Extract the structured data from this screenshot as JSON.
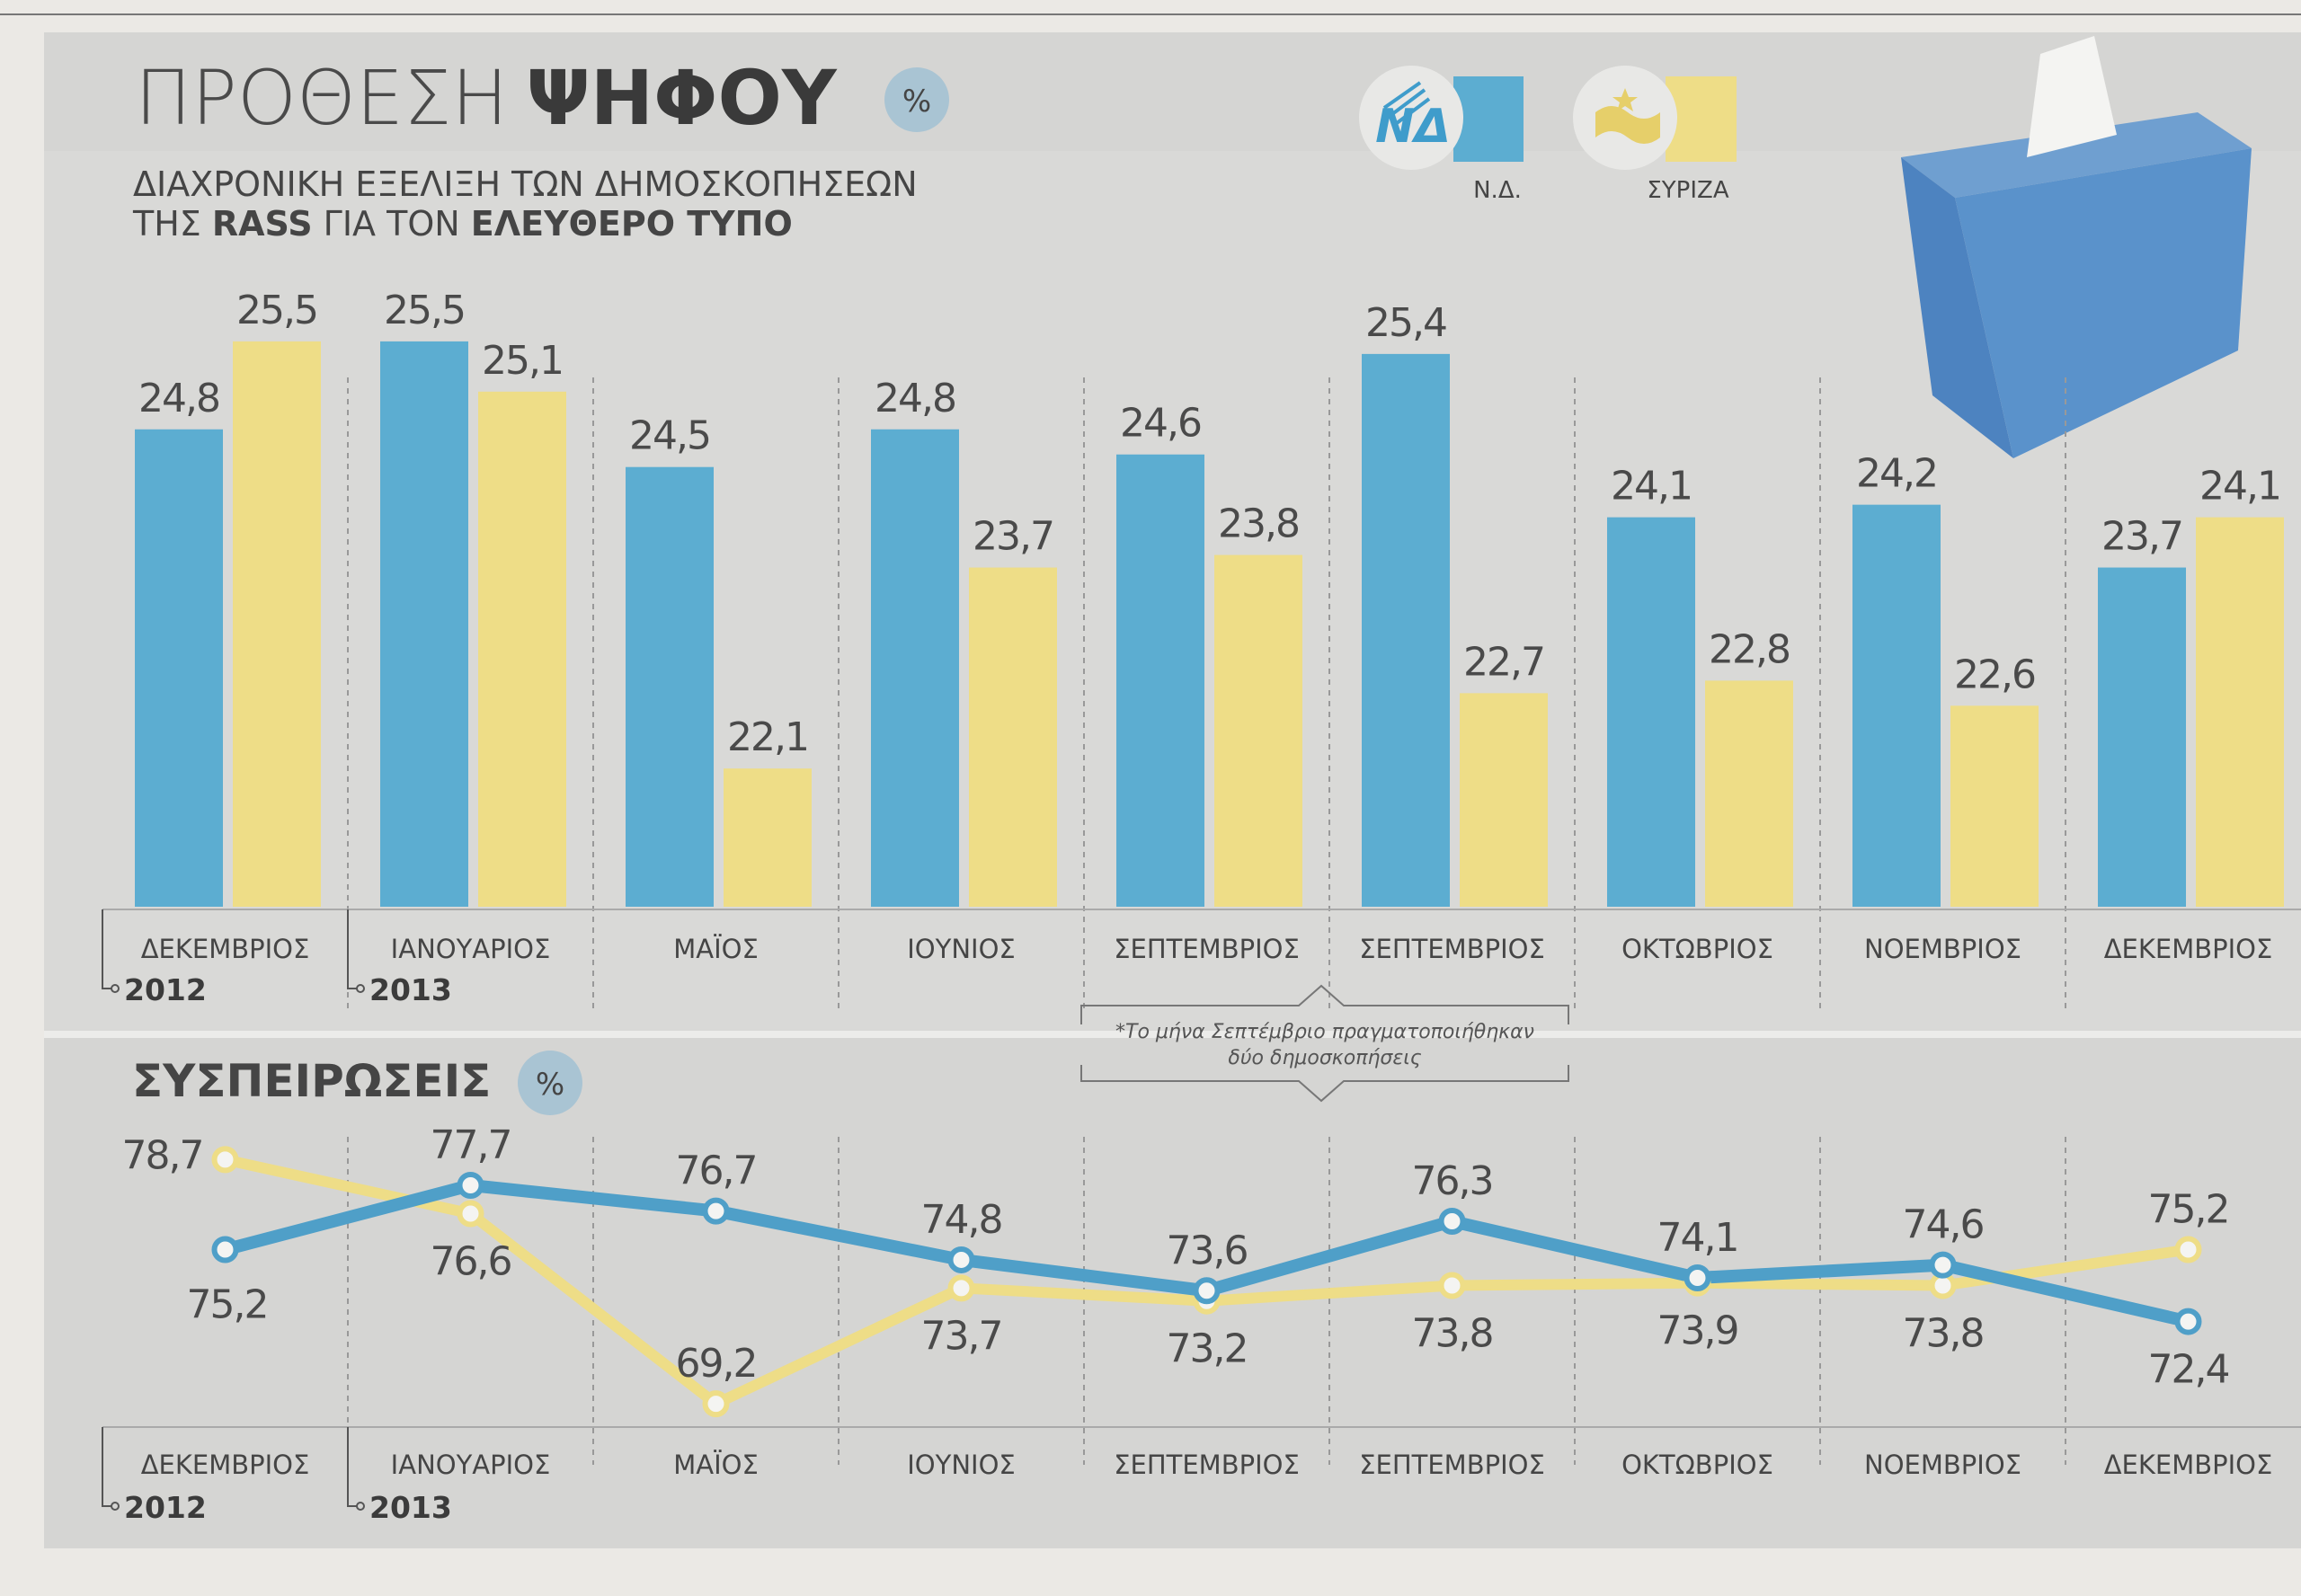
{
  "title": {
    "light": "ΠΡΟΘΕΣΗ",
    "bold": "ΨΗΦΟΥ",
    "unit": "%"
  },
  "subtitle": {
    "line1": "ΔΙΑΧΡΟΝΙΚΗ ΕΞΕΛΙΞΗ ΤΩΝ ΔΗΜΟΣΚΟΠΗΣΕΩΝ",
    "line2_a": "ΤΗΣ ",
    "line2_b": "RASS",
    "line2_c": " ΓΙΑ ΤΟΝ ",
    "line2_d": "ΕΛΕΥΘΕΡΟ ΤΥΠΟ"
  },
  "legend": [
    {
      "label": "Ν.Δ.",
      "logo": "ΝΔ",
      "color": "#5cadd1"
    },
    {
      "label": "ΣΥΡΙΖΑ",
      "logo": "",
      "color": "#eedd87"
    }
  ],
  "note": {
    "line1": "*Το μήνα Σεπτέμβριο πραγματοποιήθηκαν",
    "line2": "δύο δημοσκοπήσεις"
  },
  "section2": {
    "title": "ΣΥΣΠΕΙΡΩΣΕΙΣ",
    "unit": "%"
  },
  "chart_data": [
    {
      "type": "bar",
      "title": "ΠΡΟΘΕΣΗ ΨΗΦΟΥ",
      "categories": [
        "ΔΕΚΕΜΒΡΙΟΣ",
        "ΙΑΝΟΥΑΡΙΟΣ",
        "ΜΑΪΟΣ",
        "ΙΟΥΝΙΟΣ",
        "ΣΕΠΤΕΜΒΡΙΟΣ",
        "ΣΕΠΤΕΜΒΡΙΟΣ",
        "ΟΚΤΩΒΡΙΟΣ",
        "ΝΟΕΜΒΡΙΟΣ",
        "ΔΕΚΕΜΒΡΙΟΣ"
      ],
      "years": [
        {
          "index": 0,
          "label": "2012"
        },
        {
          "index": 1,
          "label": "2013"
        }
      ],
      "series": [
        {
          "name": "Ν.Δ.",
          "color": "#5cadd1",
          "values": [
            24.8,
            25.5,
            24.5,
            24.8,
            24.6,
            25.4,
            24.1,
            24.2,
            23.7
          ],
          "labels": [
            "24,8",
            "25,5",
            "24,5",
            "24,8",
            "24,6",
            "25,4",
            "24,1",
            "24,2",
            "23,7"
          ]
        },
        {
          "name": "ΣΥΡΙΖΑ",
          "color": "#eedd87",
          "values": [
            25.5,
            25.1,
            22.1,
            23.7,
            23.8,
            22.7,
            22.8,
            22.6,
            24.1
          ],
          "labels": [
            "25,5",
            "25,1",
            "22,1",
            "23,7",
            "23,8",
            "22,7",
            "22,8",
            "22,6",
            "24,1"
          ]
        }
      ],
      "ylim": [
        21,
        26
      ],
      "grid": false
    },
    {
      "type": "line",
      "title": "ΣΥΣΠΕΙΡΩΣΕΙΣ",
      "categories": [
        "ΔΕΚΕΜΒΡΙΟΣ",
        "ΙΑΝΟΥΑΡΙΟΣ",
        "ΜΑΪΟΣ",
        "ΙΟΥΝΙΟΣ",
        "ΣΕΠΤΕΜΒΡΙΟΣ",
        "ΣΕΠΤΕΜΒΡΙΟΣ",
        "ΟΚΤΩΒΡΙΟΣ",
        "ΝΟΕΜΒΡΙΟΣ",
        "ΔΕΚΕΜΒΡΙΟΣ"
      ],
      "years": [
        {
          "index": 0,
          "label": "2012"
        },
        {
          "index": 1,
          "label": "2013"
        }
      ],
      "series": [
        {
          "name": "Ν.Δ.",
          "color": "#4f9fc8",
          "values": [
            75.2,
            77.7,
            76.7,
            74.8,
            73.6,
            76.3,
            74.1,
            74.6,
            72.4
          ],
          "labels": [
            "75,2",
            "77,7",
            "76,7",
            "74,8",
            "73,6",
            "76,3",
            "74,1",
            "74,6",
            "72,4"
          ],
          "label_pos": [
            "below",
            "above",
            "above",
            "above",
            "above",
            "above",
            "above",
            "above",
            "below"
          ]
        },
        {
          "name": "ΣΥΡΙΖΑ",
          "color": "#eedd87",
          "values": [
            78.7,
            76.6,
            69.2,
            73.7,
            73.2,
            73.8,
            73.9,
            73.8,
            75.2
          ],
          "labels": [
            "78,7",
            "76,6",
            "69,2",
            "73,7",
            "73,2",
            "73,8",
            "73,9",
            "73,8",
            "75,2"
          ],
          "label_pos": [
            "left",
            "below",
            "above",
            "below",
            "below",
            "below",
            "below",
            "below",
            "above"
          ]
        }
      ],
      "ylim": [
        68,
        80
      ],
      "grid": false
    }
  ]
}
